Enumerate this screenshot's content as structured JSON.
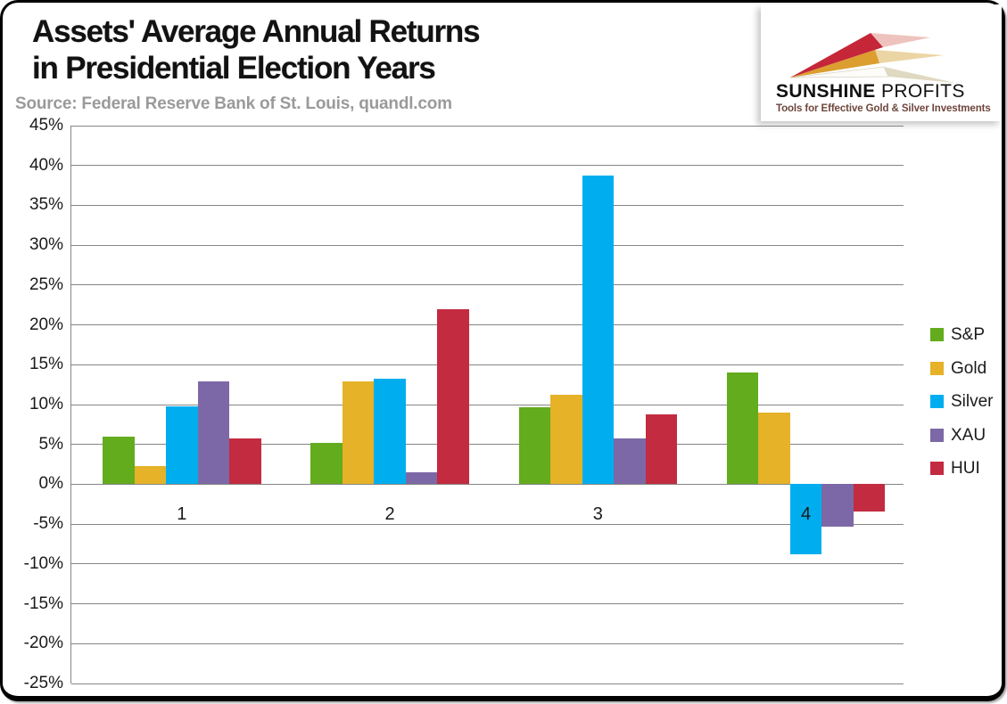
{
  "header": {
    "title_line1": "Assets' Average Annual Returns",
    "title_line2": "in Presidential Election Years",
    "source": "Source: Federal Reserve Bank of St. Louis, quandl.com"
  },
  "logo": {
    "brand_bold": "SUNSHINE",
    "brand_regular": " PROFITS",
    "tagline": "Tools for Effective Gold & Silver Investments",
    "dart_colors": {
      "red": "#c52638",
      "gold": "#dc9e2e",
      "white": "#fdfcf8"
    }
  },
  "chart_data": {
    "type": "bar",
    "title": "Assets' Average Annual Returns in Presidential Election Years",
    "categories": [
      "1",
      "2",
      "3",
      "4"
    ],
    "series": [
      {
        "name": "S&P",
        "color": "#62ac1e",
        "values": [
          6.0,
          5.2,
          9.7,
          14.0
        ]
      },
      {
        "name": "Gold",
        "color": "#e5b228",
        "values": [
          2.3,
          12.9,
          11.2,
          9.0
        ]
      },
      {
        "name": "Silver",
        "color": "#00aeef",
        "values": [
          9.8,
          13.2,
          38.7,
          -8.8
        ]
      },
      {
        "name": "XAU",
        "color": "#7c68a6",
        "values": [
          12.9,
          1.5,
          5.7,
          -5.3
        ]
      },
      {
        "name": "HUI",
        "color": "#c32b40",
        "values": [
          5.7,
          22.0,
          8.8,
          -3.4
        ]
      }
    ],
    "xlabel": "",
    "ylabel": "",
    "ylim": [
      -25,
      45
    ],
    "ytick_step": 5,
    "ytick_format": "percent",
    "grid": true,
    "grid_color": "#858585",
    "legend_position": "right"
  }
}
